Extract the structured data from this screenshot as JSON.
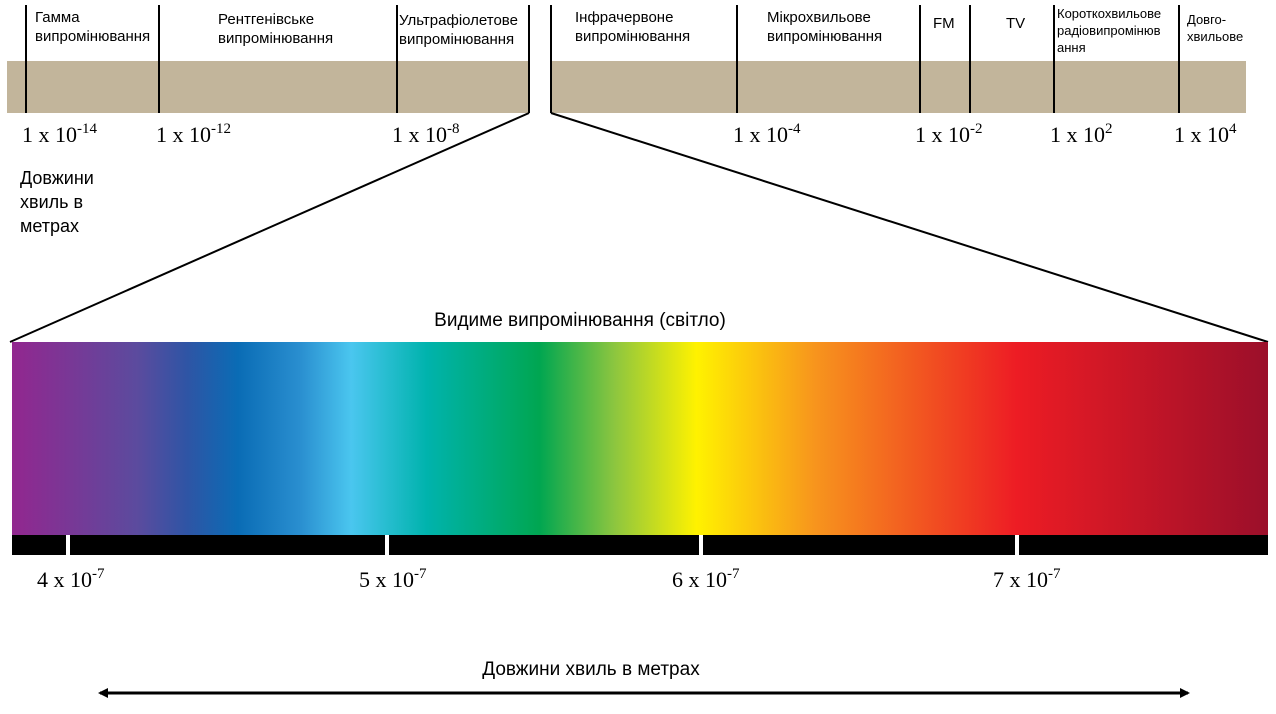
{
  "bands": [
    {
      "lines": [
        "Гамма",
        "випромінювання"
      ]
    },
    {
      "lines": [
        "Рентгенівське",
        "випромінювання"
      ]
    },
    {
      "lines": [
        "Ультрафіолетове",
        "випромінювання"
      ]
    },
    {
      "lines": [
        "Інфрачервоне",
        "випромінювання"
      ]
    },
    {
      "lines": [
        "Мікрохвильове",
        "випромінювання"
      ]
    },
    {
      "lines": [
        "FM"
      ]
    },
    {
      "lines": [
        "TV"
      ]
    },
    {
      "lines": [
        "Короткохвильове",
        "радіовипромінюв",
        "ання"
      ]
    },
    {
      "lines": [
        "Довго-",
        "хвильове"
      ]
    }
  ],
  "scale_labels": [
    {
      "base": "1 x 10",
      "exp": "-14"
    },
    {
      "base": "1 x 10",
      "exp": "-12"
    },
    {
      "base": "1 x 10",
      "exp": "-8"
    },
    {
      "base": "1 x 10",
      "exp": "-4"
    },
    {
      "base": "1 x 10",
      "exp": "-2"
    },
    {
      "base": "1 x 10",
      "exp": "2"
    },
    {
      "base": "1 x 10",
      "exp": "4"
    }
  ],
  "scale_caption": [
    "Довжини",
    "хвиль в",
    "метрах"
  ],
  "visible": {
    "title": "Видиме випромінювання (світло)",
    "labels": [
      {
        "base": "4 x 10",
        "exp": "-7"
      },
      {
        "base": "5 x 10",
        "exp": "-7"
      },
      {
        "base": "6 x 10",
        "exp": "-7"
      },
      {
        "base": "7 x 10",
        "exp": "-7"
      }
    ]
  },
  "axis_caption": "Довжини хвиль в метрах"
}
